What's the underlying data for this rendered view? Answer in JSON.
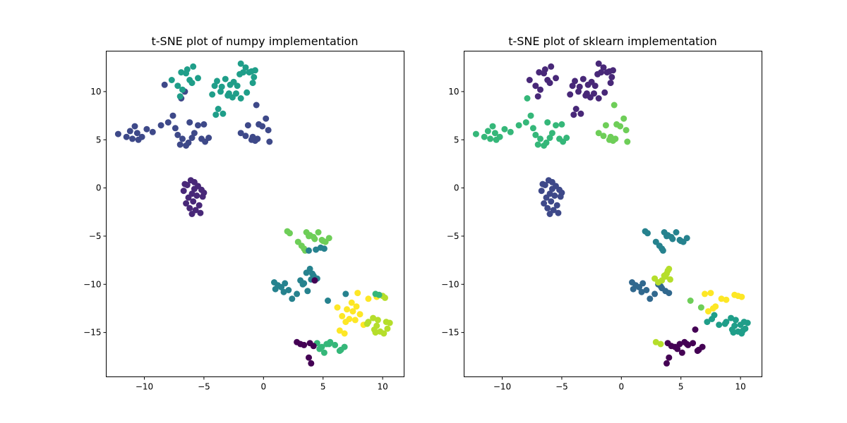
{
  "chart_data": [
    {
      "type": "scatter",
      "title": "t-SNE plot of numpy implementation",
      "xlim": [
        -13.2,
        11.8
      ],
      "ylim": [
        -19.6,
        14.2
      ],
      "xticks": [
        -10,
        -5,
        0,
        5,
        10
      ],
      "yticks": [
        -15,
        -10,
        -5,
        0,
        5,
        10
      ],
      "grid": false,
      "colors": {
        "c0": "#440154",
        "c1": "#482878",
        "c2": "#3e4989",
        "c3": "#31688e",
        "c4": "#26828e",
        "c5": "#1f9e89",
        "c6": "#35b779",
        "c7": "#6ece58",
        "c8": "#b5de2b",
        "c9": "#fde725"
      },
      "series": [
        {
          "color": "c1",
          "x": [
            -6.1,
            -5.8,
            -6.4,
            -5.5,
            -5.2,
            -6.7,
            -6.0,
            -5.6,
            -6.3,
            -5.0,
            -5.9,
            -6.5,
            -5.4,
            -6.2,
            -5.7,
            -5.1,
            -6.6,
            -5.3,
            -6.0,
            -5.8
          ],
          "y": [
            0.8,
            0.6,
            0.3,
            0.2,
            -0.2,
            -0.3,
            -0.6,
            -0.8,
            -1.0,
            -0.5,
            -1.4,
            -1.6,
            -1.8,
            -2.1,
            -2.3,
            -0.9,
            0.4,
            -2.6,
            -2.7,
            -0.1
          ]
        },
        {
          "color": "c2",
          "x": [
            -12.2,
            -11.5,
            -11.0,
            -10.5,
            -10.2,
            -11.2,
            -10.8,
            -9.8,
            -10.6,
            -9.3,
            -8.6,
            -8.0,
            -7.6,
            -7.4,
            -7.2,
            -6.8,
            -7.0,
            -6.5,
            -6.3,
            -6.0,
            -5.8,
            -5.5,
            -5.2,
            -4.9,
            -4.6,
            -6.9,
            -6.2,
            -5.0,
            -1.9,
            -1.5,
            -1.0,
            -0.7,
            -0.4,
            -0.1,
            0.2,
            0.4,
            0.5,
            -0.5,
            -0.9,
            -0.6,
            -1.3,
            -8.3,
            -6.6
          ],
          "y": [
            5.6,
            5.3,
            5.1,
            5.0,
            5.3,
            5.9,
            6.4,
            6.1,
            5.7,
            5.8,
            6.5,
            6.8,
            7.5,
            6.2,
            5.5,
            5.1,
            4.5,
            4.4,
            4.7,
            5.2,
            5.7,
            6.5,
            5.1,
            4.8,
            5.2,
            9.3,
            6.8,
            6.6,
            5.7,
            5.4,
            5.0,
            4.9,
            6.6,
            6.4,
            7.2,
            6.0,
            4.8,
            5.1,
            5.3,
            8.6,
            6.5,
            10.7,
            10.0
          ]
        },
        {
          "color": "c5",
          "x": [
            -7.7,
            -7.2,
            -6.8,
            -6.5,
            -6.2,
            -5.9,
            -6.0,
            -6.4,
            -5.5,
            -6.9,
            -7.0,
            -4.3,
            -3.9,
            -3.5,
            -3.2,
            -2.8,
            -2.5,
            -2.2,
            -1.9,
            -1.7,
            -2.0,
            -1.5,
            -1.2,
            -0.8,
            -0.7,
            -3.6,
            -3.0,
            -2.6,
            -4.0,
            -3.4,
            -1.4,
            -0.9,
            -2.3,
            -3.8,
            -2.9,
            -4.1,
            -1.9,
            -1.0
          ],
          "y": [
            11.2,
            10.6,
            10.2,
            11.9,
            11.2,
            12.6,
            10.9,
            12.3,
            11.4,
            12.0,
            9.5,
            9.7,
            11.1,
            10.5,
            11.3,
            10.7,
            11.0,
            10.6,
            12.9,
            12.0,
            11.8,
            12.5,
            12.0,
            11.5,
            12.2,
            10.0,
            9.6,
            9.4,
            7.6,
            7.7,
            9.9,
            10.9,
            9.8,
            8.2,
            9.8,
            10.6,
            9.3,
            12.1
          ]
        },
        {
          "color": "c7",
          "x": [
            2.0,
            2.2,
            2.9,
            3.2,
            3.4,
            3.6,
            3.9,
            4.2,
            4.6,
            4.9,
            5.2,
            5.5,
            3.5,
            3.8,
            4.3,
            5.0
          ],
          "y": [
            -4.5,
            -4.7,
            -5.6,
            -6.0,
            -6.3,
            -4.6,
            -4.9,
            -5.1,
            -4.6,
            -5.4,
            -5.6,
            -5.2,
            -6.5,
            -5.0,
            -5.3,
            -5.5
          ]
        },
        {
          "color": "c4",
          "x": [
            0.9,
            1.2,
            1.5,
            1.8,
            2.1,
            2.4,
            2.8,
            3.1,
            3.4,
            3.7,
            4.0,
            4.2,
            3.6,
            3.9,
            4.4,
            4.8,
            5.1,
            1.0,
            1.7,
            3.3,
            4.5,
            4.1,
            3.8,
            6.9,
            5.4
          ],
          "y": [
            -9.8,
            -10.1,
            -10.3,
            -9.9,
            -10.6,
            -11.5,
            -11.0,
            -9.6,
            -9.9,
            -10.7,
            -9.5,
            -9.1,
            -8.8,
            -8.4,
            -6.4,
            -6.2,
            -6.3,
            -10.5,
            -10.8,
            -10.0,
            -9.4,
            -8.9,
            -6.5,
            -11.0,
            -11.7
          ]
        },
        {
          "color": "c9",
          "x": [
            6.2,
            6.6,
            6.9,
            7.2,
            7.5,
            7.8,
            8.1,
            7.0,
            7.4,
            7.9,
            8.4,
            8.8,
            6.4,
            6.8,
            7.7,
            9.5
          ],
          "y": [
            -12.4,
            -13.3,
            -13.9,
            -13.6,
            -12.8,
            -12.3,
            -13.1,
            -12.6,
            -11.9,
            -10.9,
            -14.2,
            -11.5,
            -14.8,
            -15.1,
            -13.7,
            -11.3
          ]
        },
        {
          "color": "c8",
          "x": [
            8.8,
            9.2,
            9.5,
            9.8,
            10.1,
            10.4,
            10.6,
            9.6,
            10.0,
            10.3,
            9.4,
            10.2,
            9.3,
            8.7
          ],
          "y": [
            -13.9,
            -13.5,
            -14.3,
            -14.9,
            -15.1,
            -14.6,
            -14.0,
            -13.7,
            -11.2,
            -13.9,
            -15.0,
            -11.4,
            -14.7,
            -14.1
          ]
        },
        {
          "color": "c6",
          "x": [
            4.5,
            4.9,
            5.3,
            5.6,
            6.0,
            6.4,
            6.8,
            5.1,
            4.7,
            5.5,
            6.5,
            9.7,
            9.4
          ],
          "y": [
            -16.1,
            -16.5,
            -16.2,
            -16.0,
            -16.3,
            -16.9,
            -16.5,
            -17.1,
            -16.7,
            -16.2,
            -16.8,
            -11.1,
            -11.0
          ]
        },
        {
          "color": "c0",
          "x": [
            2.8,
            3.1,
            3.4,
            3.9,
            4.2,
            3.8,
            4.0,
            4.3
          ],
          "y": [
            -16.0,
            -16.2,
            -16.3,
            -16.1,
            -16.4,
            -17.6,
            -18.2,
            -9.6
          ]
        }
      ]
    },
    {
      "type": "scatter",
      "title": "t-SNE plot of sklearn implementation",
      "xlim": [
        -13.2,
        11.8
      ],
      "ylim": [
        -19.6,
        14.2
      ],
      "xticks": [
        -10,
        -5,
        0,
        5,
        10
      ],
      "yticks": [
        -15,
        -10,
        -5,
        0,
        5,
        10
      ],
      "grid": false,
      "colors": {
        "c0": "#440154",
        "c1": "#482878",
        "c2": "#3e4989",
        "c3": "#31688e",
        "c4": "#26828e",
        "c5": "#1f9e89",
        "c6": "#35b779",
        "c7": "#6ece58",
        "c8": "#b5de2b",
        "c9": "#fde725"
      },
      "series": [
        {
          "color": "c2",
          "x": [
            -6.1,
            -5.8,
            -6.4,
            -5.5,
            -5.2,
            -6.7,
            -6.0,
            -5.6,
            -6.3,
            -5.0,
            -5.9,
            -6.5,
            -5.4,
            -6.2,
            -5.7,
            -5.1,
            -6.6,
            -5.3,
            -6.0,
            -5.8
          ],
          "y": [
            0.8,
            0.6,
            0.3,
            0.2,
            -0.2,
            -0.3,
            -0.6,
            -0.8,
            -1.0,
            -0.5,
            -1.4,
            -1.6,
            -1.8,
            -2.1,
            -2.3,
            -0.9,
            0.4,
            -2.6,
            -2.7,
            -0.1
          ]
        },
        {
          "color": "c6",
          "x": [
            -12.2,
            -11.5,
            -11.0,
            -10.5,
            -10.2,
            -11.2,
            -10.8,
            -9.8,
            -10.6,
            -9.3,
            -8.6,
            -8.0,
            -7.6,
            -7.4,
            -7.2,
            -6.8,
            -7.0,
            -6.5,
            -6.3,
            -6.0,
            -5.8,
            -5.5,
            -5.2,
            -4.9,
            -4.6,
            -7.9,
            -6.2,
            -5.0
          ],
          "y": [
            5.6,
            5.3,
            5.1,
            5.0,
            5.3,
            5.9,
            6.4,
            6.1,
            5.7,
            5.8,
            6.5,
            6.8,
            7.5,
            6.2,
            5.5,
            5.1,
            4.5,
            4.4,
            4.7,
            5.2,
            5.7,
            6.5,
            5.1,
            4.8,
            5.2,
            9.3,
            6.8,
            6.6
          ]
        },
        {
          "color": "c7",
          "x": [
            -1.9,
            -1.5,
            -1.0,
            -0.7,
            -0.4,
            -0.1,
            0.2,
            0.4,
            0.5,
            -0.5,
            -0.9,
            -0.6,
            -1.3,
            5.8,
            6.7
          ],
          "y": [
            5.7,
            5.4,
            5.0,
            4.9,
            6.6,
            6.4,
            7.2,
            6.0,
            4.8,
            5.1,
            5.3,
            8.6,
            6.5,
            -11.7,
            -12.4
          ]
        },
        {
          "color": "c1",
          "x": [
            -7.7,
            -7.2,
            -6.8,
            -6.5,
            -6.2,
            -5.9,
            -6.0,
            -6.4,
            -5.5,
            -6.9,
            -7.0,
            -4.3,
            -3.9,
            -3.5,
            -3.2,
            -2.8,
            -2.5,
            -2.2,
            -1.9,
            -1.7,
            -2.0,
            -1.5,
            -1.2,
            -0.8,
            -0.7,
            -3.6,
            -3.0,
            -2.6,
            -4.0,
            -3.4,
            -1.4,
            -0.9,
            -2.3,
            -3.8,
            -2.9,
            -4.1,
            -1.9,
            -1.0
          ],
          "y": [
            11.2,
            10.6,
            10.2,
            11.9,
            11.2,
            12.6,
            10.9,
            12.3,
            11.4,
            12.0,
            9.5,
            9.7,
            11.1,
            10.5,
            11.3,
            10.7,
            11.0,
            10.6,
            12.9,
            12.0,
            11.8,
            12.5,
            12.0,
            11.5,
            12.2,
            10.0,
            9.6,
            9.4,
            7.6,
            7.7,
            9.9,
            10.9,
            9.8,
            8.2,
            9.8,
            10.6,
            9.3,
            12.1
          ]
        },
        {
          "color": "c4",
          "x": [
            2.0,
            2.2,
            2.9,
            3.2,
            3.4,
            3.6,
            3.9,
            4.2,
            4.6,
            4.9,
            5.2,
            5.5,
            3.5,
            3.8,
            4.3,
            5.0
          ],
          "y": [
            -4.5,
            -4.7,
            -5.6,
            -6.0,
            -6.3,
            -4.6,
            -4.9,
            -5.1,
            -4.6,
            -5.4,
            -5.6,
            -5.2,
            -6.5,
            -5.0,
            -5.3,
            -5.5
          ]
        },
        {
          "color": "c3",
          "x": [
            0.9,
            1.2,
            1.5,
            1.8,
            2.1,
            2.4,
            2.8,
            3.1,
            3.4,
            3.7,
            4.0,
            1.0,
            1.7,
            3.3
          ],
          "y": [
            -9.8,
            -10.1,
            -10.3,
            -9.9,
            -10.6,
            -11.5,
            -11.0,
            -10.0,
            -10.4,
            -10.7,
            -10.9,
            -10.5,
            -10.8,
            -10.2
          ]
        },
        {
          "color": "c8",
          "x": [
            2.8,
            3.1,
            3.4,
            3.7,
            3.9,
            4.0,
            3.8,
            4.1,
            3.6,
            2.9,
            3.3
          ],
          "y": [
            -9.4,
            -9.8,
            -9.6,
            -9.2,
            -8.6,
            -8.4,
            -8.9,
            -9.5,
            -9.1,
            -16.0,
            -16.2
          ]
        },
        {
          "color": "c9",
          "x": [
            7.0,
            7.5,
            7.9,
            8.4,
            8.8,
            9.5,
            9.8,
            10.1,
            7.3,
            7.7
          ],
          "y": [
            -11.0,
            -10.9,
            -12.3,
            -11.5,
            -11.6,
            -11.1,
            -11.2,
            -11.3,
            -12.8,
            -12.5
          ]
        },
        {
          "color": "c5",
          "x": [
            8.8,
            9.2,
            9.5,
            9.8,
            10.1,
            10.4,
            10.6,
            9.6,
            10.0,
            10.3,
            9.4,
            10.2,
            9.3,
            8.7,
            7.2,
            7.6,
            8.2,
            7.8
          ],
          "y": [
            -13.9,
            -13.5,
            -14.3,
            -14.9,
            -15.1,
            -14.6,
            -14.0,
            -13.7,
            -14.2,
            -13.9,
            -15.0,
            -14.8,
            -14.7,
            -14.1,
            -13.9,
            -13.6,
            -14.2,
            -13.2
          ]
        },
        {
          "color": "c0",
          "x": [
            3.9,
            4.2,
            4.5,
            4.9,
            5.3,
            5.6,
            6.0,
            6.4,
            6.8,
            5.1,
            4.7,
            5.5,
            6.5,
            4.0,
            3.8,
            6.2
          ],
          "y": [
            -16.1,
            -16.4,
            -16.5,
            -16.2,
            -16.0,
            -16.3,
            -16.1,
            -16.9,
            -16.5,
            -17.1,
            -16.7,
            -16.2,
            -16.8,
            -17.6,
            -18.2,
            -14.7
          ]
        }
      ]
    }
  ]
}
